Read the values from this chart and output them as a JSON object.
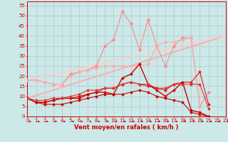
{
  "background_color": "#cce8e8",
  "grid_color": "#aacccc",
  "xlabel": "Vent moyen/en rafales ( km/h )",
  "x_ticks": [
    0,
    1,
    2,
    3,
    4,
    5,
    6,
    7,
    8,
    9,
    10,
    11,
    12,
    13,
    14,
    15,
    16,
    17,
    18,
    19,
    20,
    21,
    22,
    23
  ],
  "y_ticks": [
    0,
    5,
    10,
    15,
    20,
    25,
    30,
    35,
    40,
    45,
    50,
    55
  ],
  "xlim": [
    0,
    23
  ],
  "ylim": [
    0,
    57
  ],
  "lines": [
    {
      "x": [
        0,
        23
      ],
      "y": [
        9,
        40
      ],
      "color": "#ffaaaa",
      "lw": 1.3,
      "marker": null,
      "ms": 0
    },
    {
      "x": [
        0,
        23
      ],
      "y": [
        18,
        40
      ],
      "color": "#ffcccc",
      "lw": 1.3,
      "marker": null,
      "ms": 0
    },
    {
      "x": [
        0,
        1,
        2,
        3,
        4,
        5,
        6,
        7,
        8,
        9,
        10,
        11,
        12,
        13,
        14,
        15,
        16,
        17,
        18,
        19,
        20,
        21,
        22,
        23
      ],
      "y": [
        18,
        18,
        17,
        16,
        16,
        21,
        22,
        23,
        25,
        35,
        38,
        52,
        46,
        33,
        48,
        35,
        25,
        35,
        39,
        39,
        5,
        12,
        null,
        null
      ],
      "color": "#ff8888",
      "lw": 0.8,
      "marker": "D",
      "ms": 1.8
    },
    {
      "x": [
        0,
        1,
        2,
        3,
        4,
        5,
        6,
        7,
        8,
        9,
        10,
        11,
        12,
        13,
        14,
        15,
        16,
        17,
        18,
        19,
        20,
        21,
        22,
        23
      ],
      "y": [
        18,
        18,
        17,
        16,
        16,
        20,
        22,
        23,
        24,
        25,
        25,
        25,
        25,
        25,
        26,
        35,
        37,
        37,
        38,
        39,
        5,
        null,
        null,
        null
      ],
      "color": "#ffaaaa",
      "lw": 0.8,
      "marker": "D",
      "ms": 1.8
    },
    {
      "x": [
        0,
        1,
        2,
        3,
        4,
        5,
        6,
        7,
        8,
        9,
        10,
        11,
        12,
        13,
        14,
        15,
        16,
        17,
        18,
        19,
        20,
        21,
        22,
        23
      ],
      "y": [
        9,
        7,
        6,
        6,
        6,
        7,
        8,
        9,
        10,
        11,
        11,
        11,
        12,
        13,
        12,
        10,
        9,
        8,
        7,
        2,
        1,
        0,
        null,
        null
      ],
      "color": "#cc0000",
      "lw": 0.8,
      "marker": "D",
      "ms": 1.5
    },
    {
      "x": [
        0,
        1,
        2,
        3,
        4,
        5,
        6,
        7,
        8,
        9,
        10,
        11,
        12,
        13,
        14,
        15,
        16,
        17,
        18,
        19,
        20,
        21,
        22,
        23
      ],
      "y": [
        9,
        7,
        7,
        8,
        9,
        9,
        10,
        11,
        12,
        14,
        14,
        16,
        17,
        16,
        15,
        14,
        13,
        16,
        17,
        17,
        22,
        6,
        null,
        null
      ],
      "color": "#ee1111",
      "lw": 0.8,
      "marker": "D",
      "ms": 1.5
    },
    {
      "x": [
        0,
        1,
        2,
        3,
        4,
        5,
        6,
        7,
        8,
        9,
        10,
        11,
        12,
        13,
        14,
        15,
        16,
        17,
        18,
        19,
        20,
        21,
        22,
        23
      ],
      "y": [
        9,
        7,
        7,
        8,
        9,
        9,
        9,
        11,
        12,
        12,
        11,
        19,
        21,
        26,
        16,
        13,
        10,
        13,
        17,
        3,
        2,
        0,
        null,
        null
      ],
      "color": "#cc0000",
      "lw": 1.0,
      "marker": "D",
      "ms": 1.5
    },
    {
      "x": [
        0,
        1,
        2,
        3,
        4,
        5,
        6,
        7,
        8,
        9,
        10,
        11,
        12,
        13,
        14,
        15,
        16,
        17,
        18,
        19,
        20,
        21,
        22,
        23
      ],
      "y": [
        9,
        8,
        8,
        9,
        9,
        10,
        11,
        13,
        13,
        14,
        14,
        16,
        17,
        16,
        16,
        14,
        14,
        16,
        16,
        16,
        16,
        4,
        null,
        null
      ],
      "color": "#dd3333",
      "lw": 0.8,
      "marker": "D",
      "ms": 1.5
    }
  ],
  "arrow_color": "#cc0000",
  "tick_fontsize": 5,
  "label_fontsize": 6
}
